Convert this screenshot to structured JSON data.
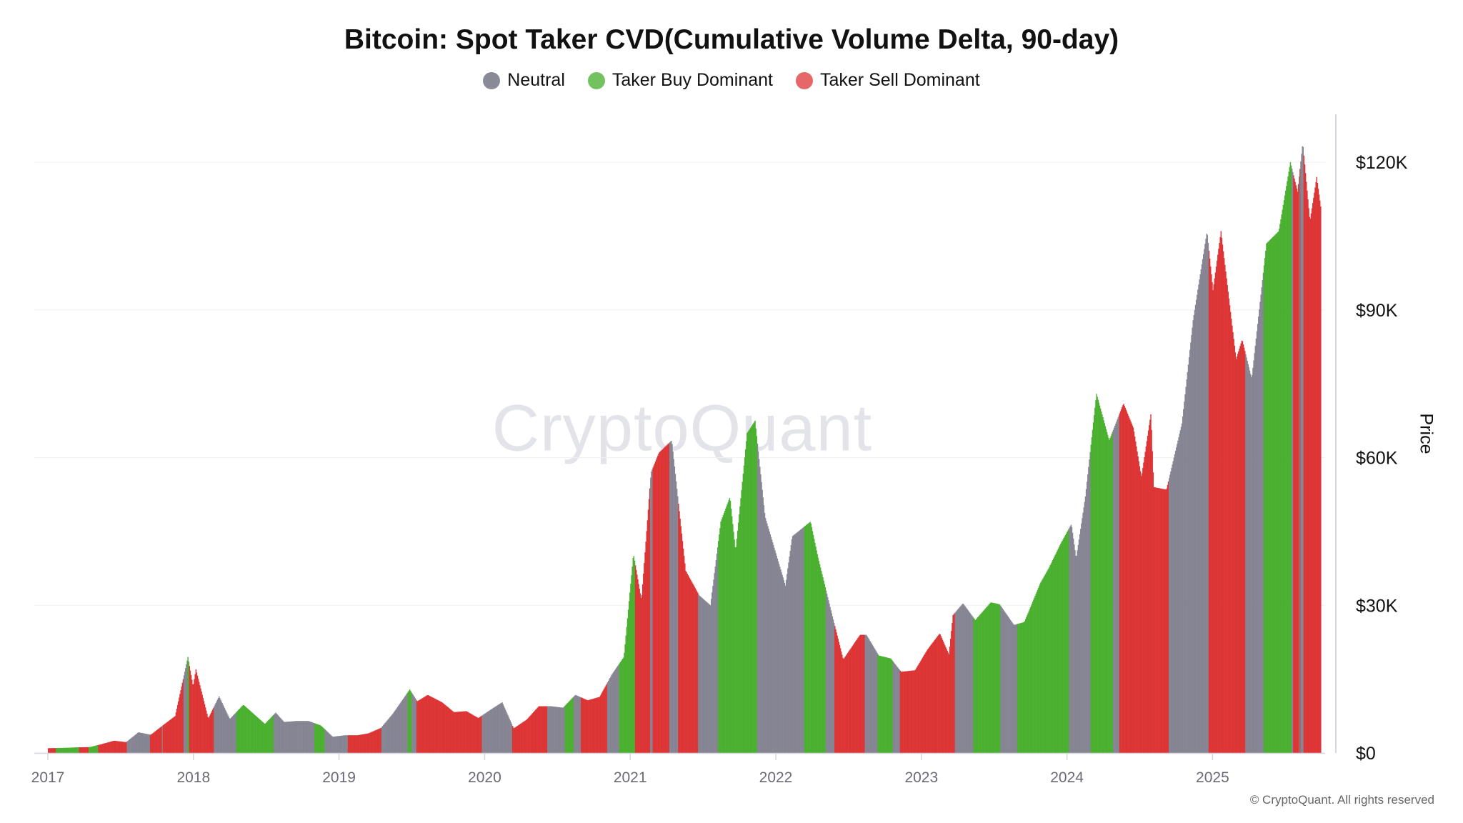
{
  "chart_data": {
    "type": "bar",
    "title": "Bitcoin: Spot Taker CVD(Cumulative Volume Delta, 90-day)",
    "ylabel": "Price",
    "xlabel": "",
    "ylim": [
      0,
      130000
    ],
    "xlim": [
      "2017-01-01",
      "2025-10-01"
    ],
    "y_ticks": [
      {
        "value": 0,
        "label": "$0"
      },
      {
        "value": 30000,
        "label": "$30K"
      },
      {
        "value": 60000,
        "label": "$60K"
      },
      {
        "value": 90000,
        "label": "$90K"
      },
      {
        "value": 120000,
        "label": "$120K"
      }
    ],
    "x_ticks": [
      "2017",
      "2018",
      "2019",
      "2020",
      "2021",
      "2022",
      "2023",
      "2024",
      "2025"
    ],
    "grid": true,
    "legend_placement": "top-center",
    "legend": [
      {
        "key": "neutral",
        "label": "Neutral",
        "color": "#8a8996"
      },
      {
        "key": "buy",
        "label": "Taker Buy Dominant",
        "color": "#72c25f"
      },
      {
        "key": "sell",
        "label": "Taker Sell Dominant",
        "color": "#e56767"
      }
    ],
    "bar_colors": {
      "neutral": "#868593",
      "buy": "#4bb030",
      "sell": "#dd3535"
    },
    "price": [
      [
        "2017-01-01",
        970
      ],
      [
        "2017-02-15",
        1050
      ],
      [
        "2017-03-15",
        1150
      ],
      [
        "2017-04-15",
        1200
      ],
      [
        "2017-05-15",
        1800
      ],
      [
        "2017-06-15",
        2500
      ],
      [
        "2017-07-15",
        2200
      ],
      [
        "2017-08-15",
        4200
      ],
      [
        "2017-09-15",
        3700
      ],
      [
        "2017-10-15",
        5600
      ],
      [
        "2017-11-15",
        7500
      ],
      [
        "2017-12-17",
        19500
      ],
      [
        "2017-12-30",
        13500
      ],
      [
        "2018-01-06",
        17000
      ],
      [
        "2018-02-06",
        7000
      ],
      [
        "2018-03-05",
        11500
      ],
      [
        "2018-04-01",
        6900
      ],
      [
        "2018-05-05",
        9800
      ],
      [
        "2018-06-28",
        5900
      ],
      [
        "2018-07-25",
        8200
      ],
      [
        "2018-08-15",
        6300
      ],
      [
        "2018-09-15",
        6500
      ],
      [
        "2018-10-15",
        6500
      ],
      [
        "2018-11-15",
        5600
      ],
      [
        "2018-12-15",
        3300
      ],
      [
        "2019-01-15",
        3600
      ],
      [
        "2019-02-15",
        3600
      ],
      [
        "2019-03-15",
        4000
      ],
      [
        "2019-04-15",
        5100
      ],
      [
        "2019-05-15",
        8000
      ],
      [
        "2019-06-26",
        12900
      ],
      [
        "2019-07-15",
        10500
      ],
      [
        "2019-08-10",
        11800
      ],
      [
        "2019-09-15",
        10300
      ],
      [
        "2019-10-15",
        8300
      ],
      [
        "2019-11-15",
        8500
      ],
      [
        "2019-12-15",
        7100
      ],
      [
        "2020-01-15",
        8800
      ],
      [
        "2020-02-13",
        10300
      ],
      [
        "2020-03-13",
        5000
      ],
      [
        "2020-04-15",
        6800
      ],
      [
        "2020-05-15",
        9500
      ],
      [
        "2020-06-15",
        9500
      ],
      [
        "2020-07-15",
        9200
      ],
      [
        "2020-08-15",
        11800
      ],
      [
        "2020-09-15",
        10700
      ],
      [
        "2020-10-15",
        11400
      ],
      [
        "2020-11-15",
        16000
      ],
      [
        "2020-12-15",
        19500
      ],
      [
        "2021-01-08",
        40500
      ],
      [
        "2021-01-28",
        31000
      ],
      [
        "2021-02-21",
        57000
      ],
      [
        "2021-03-13",
        61000
      ],
      [
        "2021-04-14",
        63500
      ],
      [
        "2021-05-19",
        37000
      ],
      [
        "2021-06-22",
        32000
      ],
      [
        "2021-07-20",
        30000
      ],
      [
        "2021-08-15",
        47000
      ],
      [
        "2021-09-07",
        52000
      ],
      [
        "2021-09-21",
        41000
      ],
      [
        "2021-10-20",
        65000
      ],
      [
        "2021-11-09",
        67500
      ],
      [
        "2021-12-04",
        48000
      ],
      [
        "2022-01-24",
        34000
      ],
      [
        "2022-02-10",
        44000
      ],
      [
        "2022-03-28",
        47000
      ],
      [
        "2022-04-15",
        40000
      ],
      [
        "2022-05-15",
        30000
      ],
      [
        "2022-06-18",
        19000
      ],
      [
        "2022-07-30",
        24000
      ],
      [
        "2022-08-15",
        24000
      ],
      [
        "2022-09-15",
        19800
      ],
      [
        "2022-10-15",
        19200
      ],
      [
        "2022-11-10",
        16500
      ],
      [
        "2022-12-15",
        16800
      ],
      [
        "2023-01-15",
        21000
      ],
      [
        "2023-02-15",
        24300
      ],
      [
        "2023-03-10",
        20000
      ],
      [
        "2023-03-20",
        28000
      ],
      [
        "2023-04-14",
        30400
      ],
      [
        "2023-05-15",
        27000
      ],
      [
        "2023-06-23",
        30600
      ],
      [
        "2023-07-15",
        30200
      ],
      [
        "2023-08-20",
        26000
      ],
      [
        "2023-09-15",
        26600
      ],
      [
        "2023-10-25",
        34500
      ],
      [
        "2023-11-15",
        37500
      ],
      [
        "2023-12-15",
        42500
      ],
      [
        "2024-01-11",
        46500
      ],
      [
        "2024-01-23",
        39500
      ],
      [
        "2024-02-15",
        52000
      ],
      [
        "2024-03-14",
        73000
      ],
      [
        "2024-04-15",
        63500
      ],
      [
        "2024-05-21",
        71000
      ],
      [
        "2024-06-15",
        66000
      ],
      [
        "2024-07-05",
        56000
      ],
      [
        "2024-07-29",
        69000
      ],
      [
        "2024-08-05",
        54000
      ],
      [
        "2024-09-06",
        53500
      ],
      [
        "2024-10-15",
        67000
      ],
      [
        "2024-11-12",
        88000
      ],
      [
        "2024-12-17",
        106000
      ],
      [
        "2025-01-01",
        94000
      ],
      [
        "2025-01-21",
        106000
      ],
      [
        "2025-02-28",
        80000
      ],
      [
        "2025-03-15",
        84000
      ],
      [
        "2025-04-08",
        76000
      ],
      [
        "2025-05-15",
        103500
      ],
      [
        "2025-06-15",
        106000
      ],
      [
        "2025-07-14",
        120000
      ],
      [
        "2025-08-01",
        114000
      ],
      [
        "2025-08-14",
        124000
      ],
      [
        "2025-09-01",
        108000
      ],
      [
        "2025-09-18",
        117000
      ],
      [
        "2025-09-28",
        111000
      ]
    ],
    "regimes": [
      [
        "2017-01-01",
        "sell"
      ],
      [
        "2017-01-20",
        "buy"
      ],
      [
        "2017-03-18",
        "sell"
      ],
      [
        "2017-04-12",
        "buy"
      ],
      [
        "2017-05-05",
        "sell"
      ],
      [
        "2017-07-16",
        "neutral"
      ],
      [
        "2017-09-13",
        "sell"
      ],
      [
        "2017-10-12",
        "neutral"
      ],
      [
        "2017-10-15",
        "sell"
      ],
      [
        "2017-12-06",
        "neutral"
      ],
      [
        "2017-12-16",
        "buy"
      ],
      [
        "2017-12-20",
        "sell"
      ],
      [
        "2018-02-20",
        "neutral"
      ],
      [
        "2018-04-16",
        "buy"
      ],
      [
        "2018-07-20",
        "neutral"
      ],
      [
        "2018-10-30",
        "buy"
      ],
      [
        "2018-11-25",
        "neutral"
      ],
      [
        "2019-01-22",
        "sell"
      ],
      [
        "2019-04-15",
        "neutral"
      ],
      [
        "2019-06-20",
        "buy"
      ],
      [
        "2019-07-01",
        "neutral"
      ],
      [
        "2019-07-12",
        "sell"
      ],
      [
        "2019-12-24",
        "neutral"
      ],
      [
        "2020-03-10",
        "sell"
      ],
      [
        "2020-06-05",
        "neutral"
      ],
      [
        "2020-07-20",
        "buy"
      ],
      [
        "2020-08-10",
        "neutral"
      ],
      [
        "2020-08-28",
        "sell"
      ],
      [
        "2020-11-03",
        "neutral"
      ],
      [
        "2020-12-02",
        "buy"
      ],
      [
        "2021-01-12",
        "sell"
      ],
      [
        "2021-02-18",
        "neutral"
      ],
      [
        "2021-02-24",
        "sell"
      ],
      [
        "2021-04-08",
        "neutral"
      ],
      [
        "2021-04-30",
        "sell"
      ],
      [
        "2021-06-18",
        "neutral"
      ],
      [
        "2021-08-08",
        "buy"
      ],
      [
        "2021-11-14",
        "neutral"
      ],
      [
        "2022-03-12",
        "buy"
      ],
      [
        "2022-05-05",
        "neutral"
      ],
      [
        "2022-05-27",
        "sell"
      ],
      [
        "2022-08-10",
        "neutral"
      ],
      [
        "2022-09-12",
        "buy"
      ],
      [
        "2022-10-20",
        "neutral"
      ],
      [
        "2022-11-06",
        "sell"
      ],
      [
        "2023-03-25",
        "neutral"
      ],
      [
        "2023-05-10",
        "buy"
      ],
      [
        "2023-07-16",
        "neutral"
      ],
      [
        "2023-08-28",
        "buy"
      ],
      [
        "2024-01-05",
        "neutral"
      ],
      [
        "2024-02-28",
        "buy"
      ],
      [
        "2024-04-25",
        "neutral"
      ],
      [
        "2024-05-10",
        "sell"
      ],
      [
        "2024-09-12",
        "neutral"
      ],
      [
        "2024-12-20",
        "sell"
      ],
      [
        "2025-03-22",
        "neutral"
      ],
      [
        "2025-05-08",
        "buy"
      ],
      [
        "2025-07-17",
        "neutral"
      ],
      [
        "2025-07-21",
        "sell"
      ],
      [
        "2025-08-03",
        "neutral"
      ],
      [
        "2025-08-05",
        "sell"
      ],
      [
        "2025-08-08",
        "neutral"
      ],
      [
        "2025-08-16",
        "sell"
      ]
    ]
  },
  "watermark": "CryptoQuant",
  "copyright": "© CryptoQuant. All rights reserved"
}
